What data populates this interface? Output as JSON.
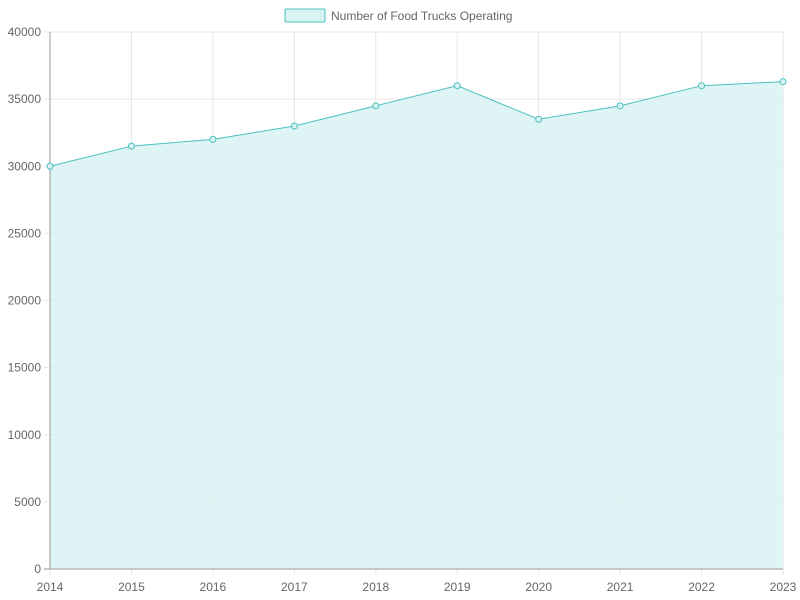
{
  "chart_data": {
    "type": "area",
    "x": [
      "2014",
      "2015",
      "2016",
      "2017",
      "2018",
      "2019",
      "2020",
      "2021",
      "2022",
      "2023"
    ],
    "series": [
      {
        "name": "Number of Food Trucks Operating",
        "values": [
          30000,
          31500,
          32000,
          33000,
          34500,
          36000,
          33500,
          34500,
          36000,
          36300
        ]
      }
    ],
    "title": "",
    "xlabel": "",
    "ylabel": "",
    "ylim": [
      0,
      40000
    ],
    "yticks": [
      0,
      5000,
      10000,
      15000,
      20000,
      25000,
      30000,
      35000,
      40000
    ],
    "grid": true,
    "legend_position": "top-center",
    "colors": {
      "line": "#4bc0c0",
      "fill": "#d9f2f2",
      "grid": "#e6e6e6",
      "axis": "#999999",
      "text": "#666666"
    }
  }
}
